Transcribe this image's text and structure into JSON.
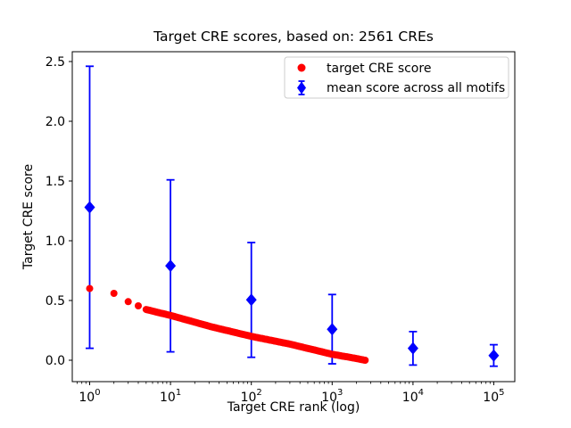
{
  "figure": {
    "background": "#ffffff",
    "text_color": "#000000",
    "frame_color": "#000000",
    "legend_border_color": "#cccccc"
  },
  "chart_data": {
    "type": "scatter",
    "title": "Target CRE scores, based on: 2561 CREs",
    "xlabel": "Target CRE rank (log)",
    "ylabel": "Target CRE score",
    "x_scale": "log10",
    "xlim_log10": [
      -0.215,
      5.26
    ],
    "ylim": [
      -0.179,
      2.582
    ],
    "x_major_ticks": [
      1,
      10,
      100,
      1000,
      10000,
      100000
    ],
    "x_major_tick_labels": [
      "10^0",
      "10^1",
      "10^2",
      "10^3",
      "10^4",
      "10^5"
    ],
    "y_ticks": [
      0.0,
      0.5,
      1.0,
      1.5,
      2.0,
      2.5
    ],
    "grid": false,
    "legend_position": "upper right",
    "legend_entries": [
      "target CRE score",
      "mean score across all motifs"
    ],
    "series": [
      {
        "name": "target CRE score",
        "color": "#ff0000",
        "marker": "circle",
        "marker_radius_px": 4,
        "n_points": 2561,
        "rank_range": [
          1,
          2561
        ],
        "anchors_rank_value": [
          [
            1,
            0.6
          ],
          [
            2,
            0.56
          ],
          [
            3,
            0.49
          ],
          [
            4,
            0.455
          ],
          [
            5,
            0.425
          ],
          [
            7,
            0.4
          ],
          [
            10,
            0.375
          ],
          [
            32,
            0.28
          ],
          [
            100,
            0.2
          ],
          [
            300,
            0.135
          ],
          [
            1000,
            0.05
          ],
          [
            1800,
            0.02
          ],
          [
            2561,
            0.0
          ]
        ]
      },
      {
        "name": "mean score across all motifs",
        "color": "#0000ff",
        "marker": "diamond",
        "points": [
          {
            "rank": 1,
            "mean": 1.28,
            "std": 1.18
          },
          {
            "rank": 10,
            "mean": 0.79,
            "std": 0.72
          },
          {
            "rank": 100,
            "mean": 0.505,
            "std": 0.48
          },
          {
            "rank": 1000,
            "mean": 0.26,
            "std": 0.29
          },
          {
            "rank": 10000,
            "mean": 0.1,
            "std": 0.14
          },
          {
            "rank": 100000,
            "mean": 0.04,
            "std": 0.09
          }
        ]
      }
    ]
  }
}
